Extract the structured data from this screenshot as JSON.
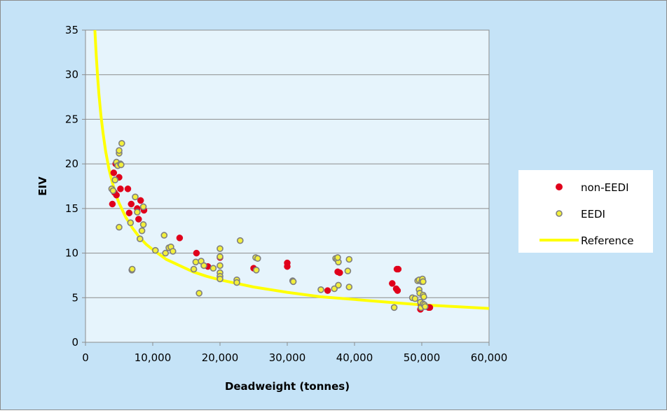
{
  "colors": {
    "outer_bg": "#c5e3f7",
    "plot_bg": "#e6f4fc",
    "grid": "#8c8c8c",
    "non_eedi": "#e0001b",
    "eedi_fill": "#f2ef3c",
    "eedi_stroke": "#7f7f7f",
    "reference": "#ffff00"
  },
  "chart_data": {
    "type": "scatter",
    "xlabel": "Deadweight (tonnes)",
    "ylabel": "EIV",
    "xlim": [
      0,
      60000
    ],
    "ylim": [
      0,
      35
    ],
    "x_ticks": [
      0,
      10000,
      20000,
      30000,
      40000,
      50000,
      60000
    ],
    "x_tick_labels": [
      "0",
      "10,000",
      "20,000",
      "30,000",
      "40,000",
      "50,000",
      "60,000"
    ],
    "y_ticks": [
      0,
      5,
      10,
      15,
      20,
      25,
      30,
      35
    ],
    "y_tick_labels": [
      "0",
      "5",
      "10",
      "15",
      "20",
      "25",
      "30",
      "35"
    ],
    "grid": "horizontal",
    "legend_position": "right",
    "series": [
      {
        "name": "non-EEDI",
        "kind": "points",
        "points": [
          [
            4000,
            15.5
          ],
          [
            4300,
            16.8
          ],
          [
            4600,
            16.5
          ],
          [
            4200,
            19.0
          ],
          [
            4500,
            20.0
          ],
          [
            5200,
            17.2
          ],
          [
            5000,
            18.5
          ],
          [
            6300,
            17.2
          ],
          [
            6500,
            14.5
          ],
          [
            6800,
            15.5
          ],
          [
            7900,
            13.8
          ],
          [
            7700,
            15.0
          ],
          [
            8200,
            15.9
          ],
          [
            8700,
            14.8
          ],
          [
            14000,
            11.7
          ],
          [
            16500,
            10.0
          ],
          [
            18200,
            8.5
          ],
          [
            20000,
            9.5
          ],
          [
            25000,
            8.3
          ],
          [
            30000,
            8.9
          ],
          [
            30000,
            8.5
          ],
          [
            36000,
            5.8
          ],
          [
            37500,
            7.9
          ],
          [
            37800,
            7.8
          ],
          [
            45600,
            6.6
          ],
          [
            46300,
            8.2
          ],
          [
            46500,
            8.2
          ],
          [
            46200,
            6.0
          ],
          [
            46400,
            5.8
          ],
          [
            49800,
            3.7
          ],
          [
            49900,
            4.2
          ],
          [
            50200,
            4.0
          ],
          [
            51000,
            3.9
          ],
          [
            51200,
            3.9
          ]
        ]
      },
      {
        "name": "EEDI",
        "kind": "points",
        "points": [
          [
            3900,
            17.2
          ],
          [
            4100,
            17.0
          ],
          [
            4400,
            18.2
          ],
          [
            4600,
            20.2
          ],
          [
            4800,
            19.8
          ],
          [
            5000,
            21.2
          ],
          [
            5000,
            21.5
          ],
          [
            5200,
            20.0
          ],
          [
            5400,
            22.3
          ],
          [
            5300,
            19.9
          ],
          [
            5000,
            12.9
          ],
          [
            6700,
            13.4
          ],
          [
            6900,
            8.1
          ],
          [
            6950,
            8.2
          ],
          [
            7400,
            16.3
          ],
          [
            7700,
            14.6
          ],
          [
            8100,
            11.6
          ],
          [
            8400,
            12.5
          ],
          [
            8600,
            13.2
          ],
          [
            8600,
            15.2
          ],
          [
            10400,
            10.3
          ],
          [
            11700,
            12.0
          ],
          [
            11900,
            10.0
          ],
          [
            12400,
            10.6
          ],
          [
            12700,
            10.7
          ],
          [
            13000,
            10.2
          ],
          [
            16100,
            8.2
          ],
          [
            16400,
            9.0
          ],
          [
            16900,
            5.5
          ],
          [
            17200,
            9.1
          ],
          [
            17600,
            8.6
          ],
          [
            19000,
            8.3
          ],
          [
            20000,
            10.5
          ],
          [
            20000,
            9.6
          ],
          [
            20000,
            8.6
          ],
          [
            20000,
            7.8
          ],
          [
            20000,
            7.4
          ],
          [
            20000,
            7.1
          ],
          [
            22500,
            7.0
          ],
          [
            22500,
            6.7
          ],
          [
            23000,
            11.4
          ],
          [
            25300,
            9.5
          ],
          [
            25600,
            9.4
          ],
          [
            25400,
            8.1
          ],
          [
            30800,
            6.9
          ],
          [
            30900,
            6.8
          ],
          [
            35000,
            5.9
          ],
          [
            37000,
            6.0
          ],
          [
            37200,
            9.4
          ],
          [
            37400,
            9.3
          ],
          [
            37600,
            9.0
          ],
          [
            37500,
            9.5
          ],
          [
            37600,
            6.4
          ],
          [
            39200,
            9.3
          ],
          [
            39000,
            8.0
          ],
          [
            39200,
            6.2
          ],
          [
            45900,
            3.9
          ],
          [
            48600,
            5.0
          ],
          [
            49000,
            4.9
          ],
          [
            49400,
            6.9
          ],
          [
            49600,
            7.0
          ],
          [
            49600,
            5.9
          ],
          [
            49700,
            5.5
          ],
          [
            49800,
            4.5
          ],
          [
            49900,
            3.9
          ],
          [
            50000,
            6.8
          ],
          [
            50100,
            7.1
          ],
          [
            50200,
            6.8
          ],
          [
            50200,
            5.3
          ],
          [
            50200,
            4.3
          ],
          [
            50300,
            5.1
          ],
          [
            50400,
            4.2
          ],
          [
            50500,
            4.0
          ]
        ]
      },
      {
        "name": "Reference",
        "kind": "line",
        "formula_label": "",
        "points": [
          [
            1400,
            35.0
          ],
          [
            1600,
            32.1
          ],
          [
            1800,
            29.8
          ],
          [
            2000,
            27.8
          ],
          [
            2300,
            25.4
          ],
          [
            2600,
            23.5
          ],
          [
            3000,
            21.4
          ],
          [
            3500,
            19.4
          ],
          [
            4000,
            17.9
          ],
          [
            4500,
            16.6
          ],
          [
            5000,
            15.6
          ],
          [
            6000,
            14.0
          ],
          [
            7000,
            12.8
          ],
          [
            8000,
            11.8
          ],
          [
            9000,
            11.0
          ],
          [
            10000,
            10.4
          ],
          [
            12000,
            9.3
          ],
          [
            14000,
            8.6
          ],
          [
            16000,
            7.9
          ],
          [
            18000,
            7.4
          ],
          [
            20000,
            7.0
          ],
          [
            25000,
            6.2
          ],
          [
            30000,
            5.6
          ],
          [
            35000,
            5.1
          ],
          [
            40000,
            4.8
          ],
          [
            45000,
            4.5
          ],
          [
            50000,
            4.2
          ],
          [
            55000,
            4.0
          ],
          [
            60000,
            3.8
          ]
        ]
      }
    ]
  }
}
